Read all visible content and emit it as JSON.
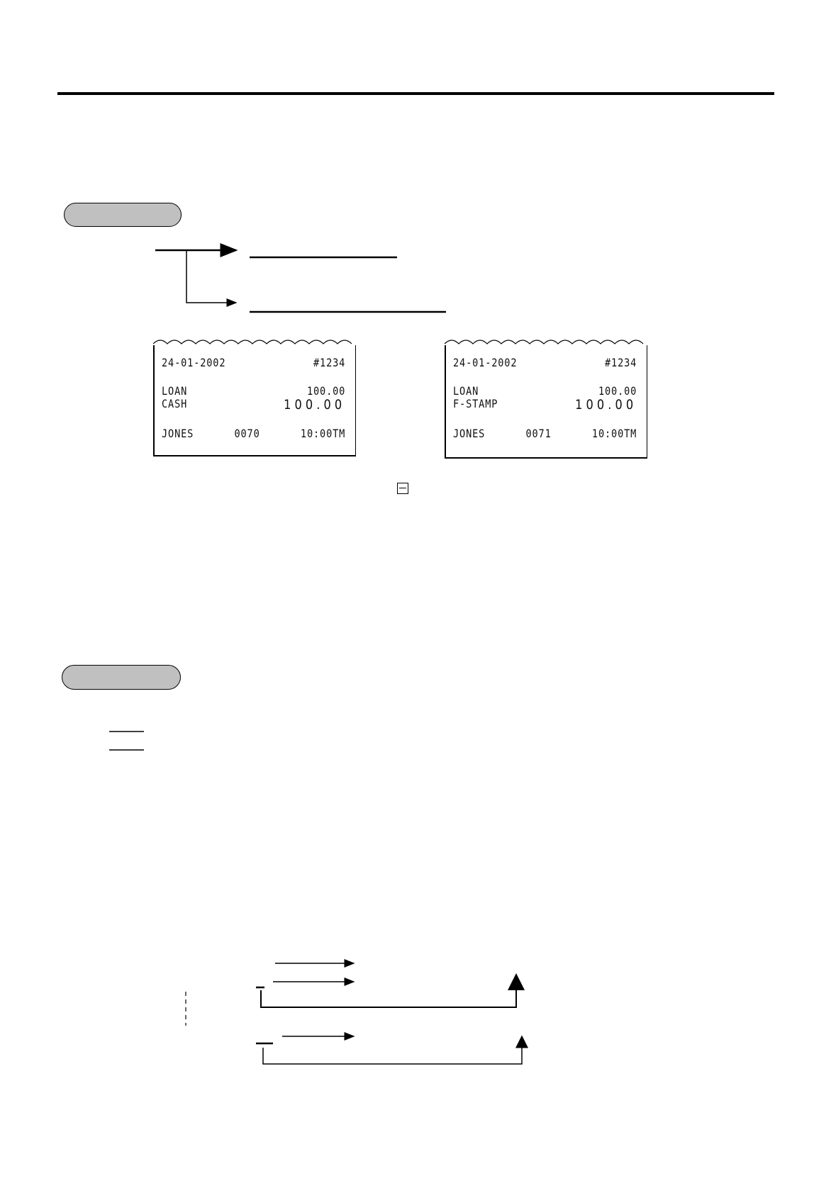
{
  "receipts": [
    {
      "date": "24-01-2002",
      "number": "#1234",
      "line1_label": "LOAN",
      "line1_value": "100.00",
      "line2_label": "CASH",
      "line2_value": "100.00",
      "clerk": "JONES",
      "consec": "0070",
      "time": "10:00TM"
    },
    {
      "date": "24-01-2002",
      "number": "#1234",
      "line1_label": "LOAN",
      "line1_value": "100.00",
      "line2_label": "F-STAMP",
      "line2_value": "100.00",
      "clerk": "JONES",
      "consec": "0071",
      "time": "10:00TM"
    }
  ],
  "icons": {
    "minus_key": "minus-key-icon"
  }
}
